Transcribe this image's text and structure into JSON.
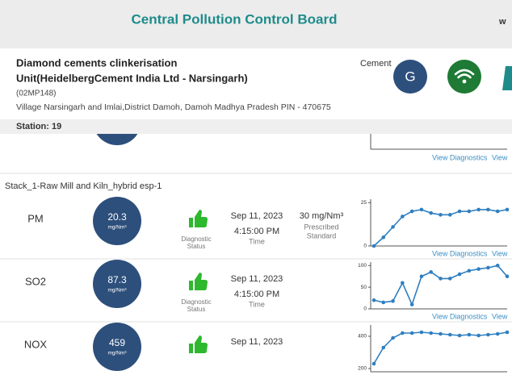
{
  "header": {
    "title": "Central Pollution Control Board",
    "corner": "w"
  },
  "plant": {
    "name_lines": [
      "Diamond cements clinkerisation",
      "Unit(HeidelbergCement India Ltd - Narsingarh)"
    ],
    "code": "(02MP148)",
    "address": "Village Narsingarh and Imlai,District Damoh, Damoh Madhya Pradesh PIN - 470675",
    "category": "Cement",
    "station": "Station: 19",
    "icon_letter": "G"
  },
  "links": {
    "view_diagnostics": "View Diagnostics",
    "view": "View"
  },
  "stack": {
    "title": "Stack_1-Raw Mill and Kiln_hybrid esp-1"
  },
  "rows": [
    {
      "parameter": "PM",
      "value": "20.3",
      "unit": "mg/Nm³",
      "status_label": [
        "Diagnostic",
        "Status"
      ],
      "date": "Sep 11, 2023",
      "time": "4:15:00 PM",
      "time_label": "Time",
      "standard": "30 mg/Nm³",
      "standard_label": [
        "Prescribed",
        "Standard"
      ],
      "chart": {
        "ylim": [
          0,
          27
        ],
        "yticks": [
          0,
          25
        ],
        "values": [
          0,
          5,
          11,
          17,
          20,
          21,
          19,
          18,
          18,
          20,
          20,
          21,
          21,
          20,
          21
        ]
      }
    },
    {
      "parameter": "SO2",
      "value": "87.3",
      "unit": "mg/Nm³",
      "status_label": [
        "Diagnostic",
        "Status"
      ],
      "date": "Sep 11, 2023",
      "time": "4:15:00 PM",
      "time_label": "Time",
      "chart": {
        "ylim": [
          0,
          108
        ],
        "yticks": [
          0,
          50,
          100
        ],
        "values": [
          20,
          15,
          18,
          60,
          10,
          75,
          85,
          70,
          70,
          80,
          88,
          92,
          95,
          100,
          75
        ]
      }
    },
    {
      "parameter": "NOX",
      "value": "459",
      "unit": "mg/Nm³",
      "date": "Sep 11, 2023",
      "chart": {
        "ylim": [
          180,
          470
        ],
        "yticks": [
          200,
          400
        ],
        "values": [
          230,
          330,
          390,
          420,
          420,
          425,
          420,
          415,
          410,
          405,
          410,
          405,
          410,
          415,
          425
        ]
      }
    }
  ]
}
